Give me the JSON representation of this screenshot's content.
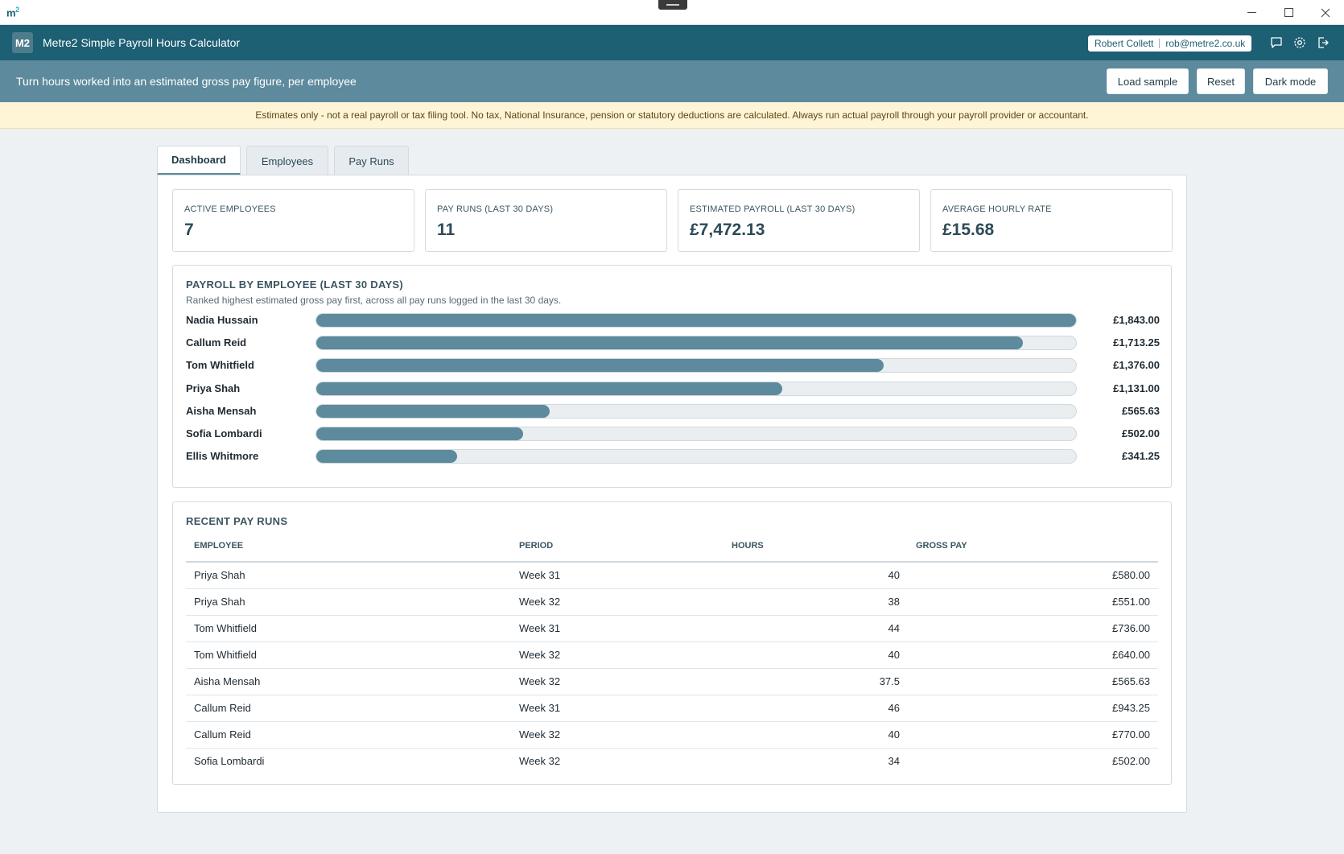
{
  "window": {
    "app_glyph": "m",
    "app_glyph_sup": "2"
  },
  "header": {
    "logo": "M2",
    "title": "Metre2 Simple Payroll Hours Calculator",
    "user_name": "Robert Collett",
    "user_email": "rob@metre2.co.uk",
    "icons": [
      "feedback-icon",
      "gear-icon",
      "logout-icon"
    ]
  },
  "subheader": {
    "tagline": "Turn hours worked into an estimated gross pay figure, per employee",
    "load_sample": "Load sample",
    "reset": "Reset",
    "dark_mode": "Dark mode"
  },
  "notice": "Estimates only - not a real payroll or tax filing tool. No tax, National Insurance, pension or statutory deductions are calculated. Always run actual payroll through your payroll provider or accountant.",
  "tabs": [
    {
      "label": "Dashboard",
      "active": true
    },
    {
      "label": "Employees",
      "active": false
    },
    {
      "label": "Pay Runs",
      "active": false
    }
  ],
  "stats": [
    {
      "label": "ACTIVE EMPLOYEES",
      "value": "7"
    },
    {
      "label": "PAY RUNS (LAST 30 DAYS)",
      "value": "11"
    },
    {
      "label": "ESTIMATED PAYROLL (LAST 30 DAYS)",
      "value": "£7,472.13"
    },
    {
      "label": "AVERAGE HOURLY RATE",
      "value": "£15.68"
    }
  ],
  "payroll_chart": {
    "title": "PAYROLL BY EMPLOYEE (LAST 30 DAYS)",
    "subtitle": "Ranked highest estimated gross pay first, across all pay runs logged in the last 30 days.",
    "accent": "#5d8a9c"
  },
  "chart_data": {
    "type": "bar",
    "orientation": "horizontal",
    "categories": [
      "Nadia Hussain",
      "Callum Reid",
      "Tom Whitfield",
      "Priya Shah",
      "Aisha Mensah",
      "Sofia Lombardi",
      "Ellis Whitmore"
    ],
    "values": [
      1843.0,
      1713.25,
      1376.0,
      1131.0,
      565.63,
      502.0,
      341.25
    ],
    "value_labels": [
      "£1,843.00",
      "£1,713.25",
      "£1,376.00",
      "£1,131.00",
      "£565.63",
      "£502.00",
      "£341.25"
    ],
    "xlim": [
      0,
      1843.0
    ]
  },
  "recent_runs": {
    "title": "RECENT PAY RUNS",
    "columns": [
      "EMPLOYEE",
      "PERIOD",
      "HOURS",
      "GROSS PAY"
    ],
    "rows": [
      [
        "Priya Shah",
        "Week 31",
        "40",
        "£580.00"
      ],
      [
        "Priya Shah",
        "Week 32",
        "38",
        "£551.00"
      ],
      [
        "Tom Whitfield",
        "Week 31",
        "44",
        "£736.00"
      ],
      [
        "Tom Whitfield",
        "Week 32",
        "40",
        "£640.00"
      ],
      [
        "Aisha Mensah",
        "Week 32",
        "37.5",
        "£565.63"
      ],
      [
        "Callum Reid",
        "Week 31",
        "46",
        "£943.25"
      ],
      [
        "Callum Reid",
        "Week 32",
        "40",
        "£770.00"
      ],
      [
        "Sofia Lombardi",
        "Week 32",
        "34",
        "£502.00"
      ]
    ]
  }
}
